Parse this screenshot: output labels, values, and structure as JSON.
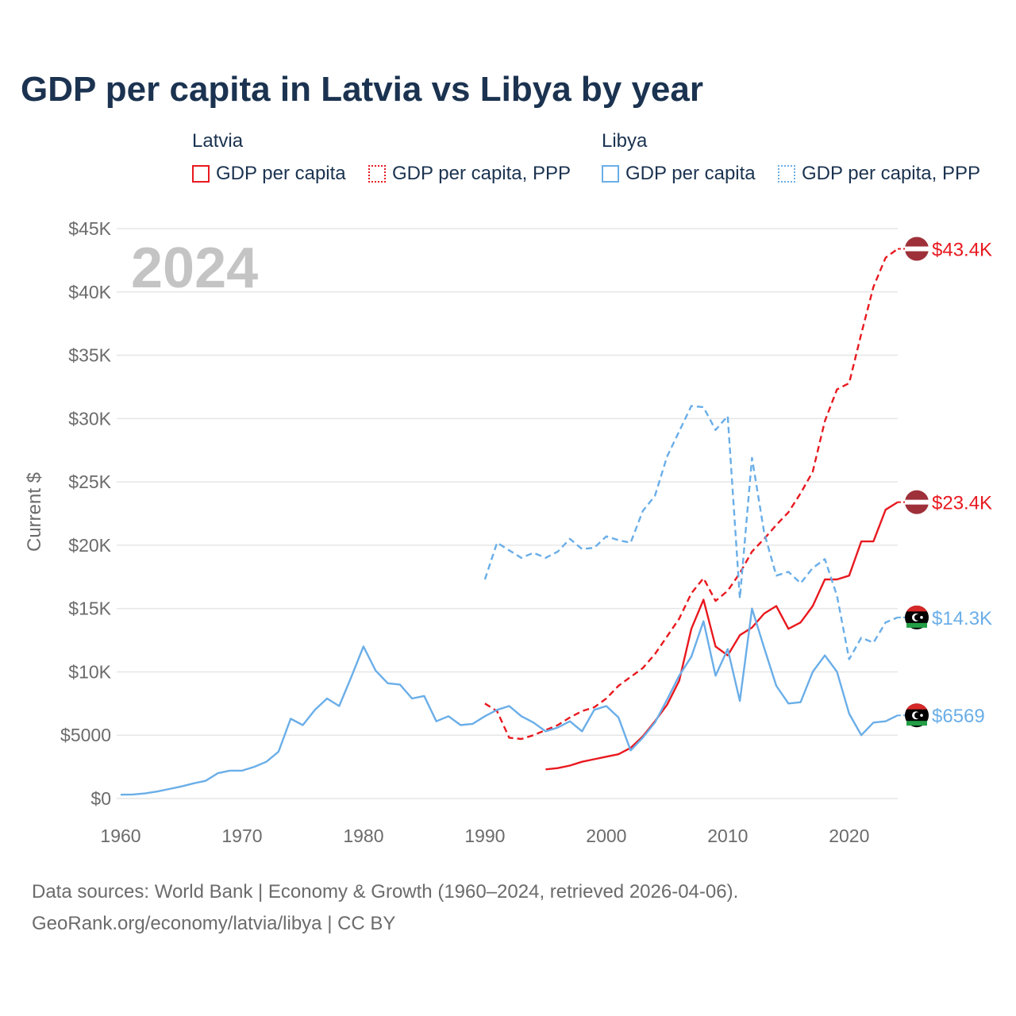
{
  "title": "GDP per capita in Latvia vs Libya by year",
  "legend": {
    "groups": [
      {
        "name": "Latvia",
        "items": [
          "GDP per capita",
          "GDP per capita, PPP"
        ]
      },
      {
        "name": "Libya",
        "items": [
          "GDP per capita",
          "GDP per capita, PPP"
        ]
      }
    ]
  },
  "source": {
    "line1": "Data sources: World Bank | Economy & Growth (1960–2024, retrieved 2026-04-06).",
    "line2": "GeoRank.org/economy/latvia/libya | CC BY"
  },
  "chart_data": {
    "type": "line",
    "title": "GDP per capita in Latvia vs Libya by year",
    "year_label": "2024",
    "ylabel": "Current $",
    "xlim": [
      1960,
      2024
    ],
    "ylim": [
      0,
      45000
    ],
    "x_ticks": [
      1960,
      1970,
      1980,
      1990,
      2000,
      2010,
      2020
    ],
    "y_ticks": [
      {
        "value": 0,
        "label": "$0"
      },
      {
        "value": 5000,
        "label": "$5000"
      },
      {
        "value": 10000,
        "label": "$10K"
      },
      {
        "value": 15000,
        "label": "$15K"
      },
      {
        "value": 20000,
        "label": "$20K"
      },
      {
        "value": 25000,
        "label": "$25K"
      },
      {
        "value": 30000,
        "label": "$30K"
      },
      {
        "value": 35000,
        "label": "$35K"
      },
      {
        "value": 40000,
        "label": "$40K"
      },
      {
        "value": 45000,
        "label": "$45K"
      }
    ],
    "colors": {
      "latvia": "#e8191f",
      "libya": "#6aaee8"
    },
    "series": [
      {
        "name": "Latvia GDP per capita, PPP",
        "country": "latvia",
        "style": "dashed",
        "end_label": "$43.4K",
        "x": [
          1990,
          1991,
          1992,
          1993,
          1994,
          1995,
          1996,
          1997,
          1998,
          1999,
          2000,
          2001,
          2002,
          2003,
          2004,
          2005,
          2006,
          2007,
          2008,
          2009,
          2010,
          2011,
          2012,
          2013,
          2014,
          2015,
          2016,
          2017,
          2018,
          2019,
          2020,
          2021,
          2022,
          2023,
          2024
        ],
        "values": [
          7500,
          6900,
          4800,
          4700,
          5000,
          5400,
          5800,
          6400,
          6900,
          7200,
          7900,
          8900,
          9600,
          10300,
          11400,
          12800,
          14200,
          16200,
          17400,
          15600,
          16400,
          17800,
          19500,
          20500,
          21600,
          22600,
          24100,
          25800,
          29800,
          32300,
          32800,
          36700,
          40400,
          42700,
          43400
        ]
      },
      {
        "name": "Latvia GDP per capita",
        "country": "latvia",
        "style": "solid",
        "end_label": "$23.4K",
        "x": [
          1995,
          1996,
          1997,
          1998,
          1999,
          2000,
          2001,
          2002,
          2003,
          2004,
          2005,
          2006,
          2007,
          2008,
          2009,
          2010,
          2011,
          2012,
          2013,
          2014,
          2015,
          2016,
          2017,
          2018,
          2019,
          2020,
          2021,
          2022,
          2023,
          2024
        ],
        "values": [
          2300,
          2400,
          2600,
          2900,
          3100,
          3300,
          3500,
          4000,
          4900,
          6100,
          7400,
          9300,
          13400,
          15700,
          12000,
          11300,
          12900,
          13500,
          14600,
          15200,
          13400,
          13900,
          15200,
          17300,
          17300,
          17600,
          20300,
          20300,
          22800,
          23400
        ]
      },
      {
        "name": "Libya GDP per capita, PPP",
        "country": "libya",
        "style": "dashed",
        "end_label": "$14.3K",
        "x": [
          1990,
          1991,
          1992,
          1993,
          1994,
          1995,
          1996,
          1997,
          1998,
          1999,
          2000,
          2001,
          2002,
          2003,
          2004,
          2005,
          2006,
          2007,
          2008,
          2009,
          2010,
          2011,
          2012,
          2013,
          2014,
          2015,
          2016,
          2017,
          2018,
          2019,
          2020,
          2021,
          2022,
          2023,
          2024
        ],
        "values": [
          17300,
          20200,
          19600,
          19000,
          19400,
          19000,
          19500,
          20500,
          19700,
          19800,
          20700,
          20400,
          20200,
          22700,
          23900,
          27000,
          29000,
          31000,
          30900,
          29100,
          30200,
          15800,
          26900,
          21000,
          17600,
          17900,
          17000,
          18200,
          18900,
          16000,
          11000,
          12700,
          12300,
          13900,
          14300
        ]
      },
      {
        "name": "Libya GDP per capita",
        "country": "libya",
        "style": "solid",
        "end_label": "$6569",
        "x": [
          1960,
          1961,
          1962,
          1963,
          1964,
          1965,
          1966,
          1967,
          1968,
          1969,
          1970,
          1971,
          1972,
          1973,
          1974,
          1975,
          1976,
          1977,
          1978,
          1979,
          1980,
          1981,
          1982,
          1983,
          1984,
          1985,
          1986,
          1987,
          1988,
          1989,
          1990,
          1991,
          1992,
          1993,
          1994,
          1995,
          1996,
          1997,
          1998,
          1999,
          2000,
          2001,
          2002,
          2003,
          2004,
          2005,
          2006,
          2007,
          2008,
          2009,
          2010,
          2011,
          2012,
          2013,
          2014,
          2015,
          2016,
          2017,
          2018,
          2019,
          2020,
          2021,
          2022,
          2023,
          2024
        ],
        "values": [
          300,
          320,
          400,
          550,
          750,
          950,
          1200,
          1400,
          2000,
          2200,
          2200,
          2500,
          2900,
          3700,
          6300,
          5800,
          7000,
          7900,
          7300,
          9600,
          12000,
          10100,
          9100,
          9000,
          7900,
          8100,
          6100,
          6500,
          5800,
          5900,
          6500,
          7000,
          7300,
          6500,
          6000,
          5300,
          5600,
          6100,
          5300,
          7000,
          7300,
          6400,
          3800,
          4800,
          6000,
          7800,
          9700,
          11200,
          14000,
          9700,
          11800,
          7700,
          15000,
          11900,
          8900,
          7500,
          7600,
          10000,
          11300,
          10000,
          6700,
          5000,
          6000,
          6100,
          6569
        ]
      }
    ]
  }
}
